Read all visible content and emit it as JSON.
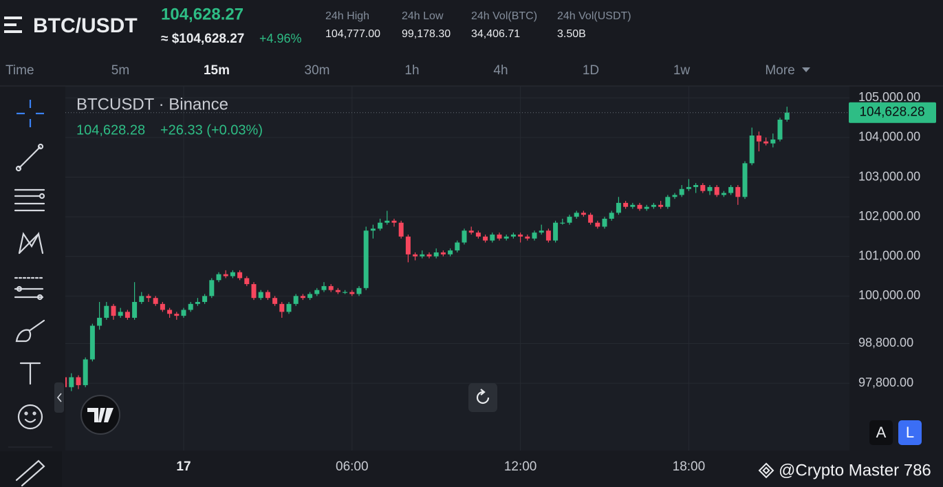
{
  "header": {
    "pair": "BTC/USDT",
    "price": "104,628.27",
    "fiat_price": "≈ $104,628.27",
    "change": "+4.96%",
    "stats": [
      {
        "label": "24h High",
        "value": "104,777.00"
      },
      {
        "label": "24h Low",
        "value": "99,178.30"
      },
      {
        "label": "24h Vol(BTC)",
        "value": "34,406.71"
      },
      {
        "label": "24h Vol(USDT)",
        "value": "3.50B"
      }
    ]
  },
  "timeframes": [
    {
      "label": "Time",
      "active": false
    },
    {
      "label": "5m",
      "active": false
    },
    {
      "label": "15m",
      "active": true
    },
    {
      "label": "30m",
      "active": false
    },
    {
      "label": "1h",
      "active": false
    },
    {
      "label": "4h",
      "active": false
    },
    {
      "label": "1D",
      "active": false
    },
    {
      "label": "1w",
      "active": false
    },
    {
      "label": "More",
      "active": false
    }
  ],
  "chart_data": {
    "type": "candlestick",
    "legend": {
      "title": "BTCUSDT · Binance",
      "price": "104,628.28",
      "change": "+26.33 (+0.03%)"
    },
    "price_tag": "104,628.28",
    "up_color": "#2ebd85",
    "down_color": "#f6465d",
    "grid": true,
    "categories": [
      null,
      null,
      null,
      null,
      null,
      null,
      null,
      null,
      null,
      null,
      null,
      null,
      null,
      null,
      null,
      null,
      null,
      "17",
      null,
      null,
      null,
      null,
      null,
      null,
      null,
      null,
      null,
      null,
      null,
      null,
      null,
      null,
      null,
      null,
      null,
      null,
      null,
      null,
      null,
      null,
      null,
      "06:00",
      null,
      null,
      null,
      null,
      null,
      null,
      null,
      null,
      null,
      null,
      null,
      null,
      null,
      null,
      null,
      null,
      null,
      null,
      null,
      null,
      null,
      null,
      null,
      "12:00",
      null,
      null,
      null,
      null,
      null,
      null,
      null,
      null,
      null,
      null,
      null,
      null,
      null,
      null,
      null,
      null,
      null,
      null,
      null,
      null,
      null,
      null,
      null,
      "18:00",
      null,
      null,
      null,
      null,
      null,
      null,
      null,
      null,
      null,
      null,
      null,
      null,
      null,
      null
    ],
    "open": [
      97950,
      97700,
      97950,
      97750,
      98400,
      99250,
      99450,
      99750,
      99500,
      99600,
      99450,
      99850,
      100000,
      99950,
      99800,
      99650,
      99550,
      99500,
      99650,
      99800,
      99850,
      100000,
      100400,
      100550,
      100500,
      100600,
      100450,
      100300,
      99950,
      100100,
      99950,
      99800,
      99600,
      99800,
      100000,
      99950,
      100050,
      100150,
      100250,
      100150,
      100100,
      100100,
      100050,
      100200,
      101650,
      101700,
      101850,
      101900,
      101850,
      101500,
      101050,
      101000,
      101050,
      101000,
      101100,
      101050,
      101150,
      101350,
      101650,
      101600,
      101500,
      101400,
      101550,
      101450,
      101500,
      101550,
      101500,
      101450,
      101600,
      101650,
      101400,
      101850,
      101850,
      102000,
      102100,
      102050,
      101850,
      101750,
      101950,
      102100,
      102350,
      102250,
      102300,
      102200,
      102250,
      102300,
      102250,
      102500,
      102550,
      102700,
      102750,
      102800,
      102650,
      102750,
      102550,
      102600,
      102750,
      102500,
      103350,
      104050,
      103900,
      103850,
      103950,
      104450
    ],
    "high": [
      98050,
      98050,
      98000,
      98450,
      99300,
      99850,
      99850,
      99800,
      99700,
      99650,
      100350,
      100100,
      100050,
      100000,
      99850,
      99700,
      99600,
      99700,
      99850,
      99950,
      100050,
      100450,
      100600,
      100650,
      100650,
      100650,
      100500,
      100350,
      100150,
      100150,
      100000,
      99850,
      99850,
      100050,
      100050,
      100100,
      100200,
      100350,
      100300,
      100200,
      100150,
      100150,
      100250,
      101750,
      101800,
      101950,
      102150,
      101950,
      101900,
      101550,
      101100,
      101150,
      101100,
      101200,
      101150,
      101200,
      101400,
      101700,
      101750,
      101650,
      101550,
      101600,
      101600,
      101550,
      101600,
      101600,
      101550,
      101650,
      101800,
      101700,
      101900,
      101950,
      102050,
      102150,
      102150,
      102100,
      101900,
      102000,
      102150,
      102500,
      102400,
      102350,
      102350,
      102300,
      102350,
      102400,
      102550,
      102600,
      102800,
      102950,
      102850,
      102850,
      102800,
      102800,
      102650,
      102800,
      102800,
      103400,
      104250,
      104150,
      104000,
      104100,
      104500,
      104777
    ],
    "low": [
      97550,
      97600,
      97650,
      97700,
      98350,
      99150,
      99400,
      99400,
      99450,
      99400,
      99400,
      99800,
      99850,
      99750,
      99600,
      99450,
      99400,
      99450,
      99600,
      99750,
      99800,
      99950,
      100350,
      100450,
      100450,
      100400,
      100250,
      99900,
      99900,
      99900,
      99750,
      99450,
      99550,
      99750,
      99900,
      99900,
      100000,
      100100,
      100100,
      100050,
      100050,
      100000,
      100000,
      100150,
      101450,
      101650,
      101800,
      101750,
      101450,
      100850,
      100900,
      100950,
      100950,
      100950,
      101000,
      101000,
      101100,
      101300,
      101550,
      101450,
      101350,
      101350,
      101400,
      101400,
      101450,
      101350,
      101400,
      101400,
      101550,
      101350,
      101350,
      101800,
      101800,
      101950,
      102000,
      101800,
      101700,
      101700,
      101900,
      102050,
      102200,
      102200,
      102150,
      102150,
      102200,
      102200,
      102200,
      102450,
      102500,
      102650,
      102600,
      102600,
      102550,
      102500,
      102500,
      102550,
      102300,
      102450,
      103300,
      103650,
      103800,
      103750,
      103900,
      104400
    ],
    "close": [
      97700,
      97950,
      97750,
      98400,
      99250,
      99450,
      99750,
      99500,
      99600,
      99450,
      99850,
      100000,
      99950,
      99800,
      99650,
      99550,
      99500,
      99650,
      99800,
      99850,
      100000,
      100400,
      100550,
      100500,
      100600,
      100450,
      100300,
      99950,
      100100,
      99950,
      99800,
      99600,
      99800,
      100000,
      99950,
      100050,
      100150,
      100250,
      100150,
      100100,
      100100,
      100050,
      100200,
      101650,
      101700,
      101850,
      101900,
      101850,
      101500,
      101050,
      101000,
      101050,
      101000,
      101100,
      101050,
      101150,
      101350,
      101650,
      101600,
      101500,
      101400,
      101550,
      101450,
      101500,
      101550,
      101500,
      101450,
      101600,
      101650,
      101400,
      101850,
      101850,
      102000,
      102100,
      102050,
      101850,
      101750,
      101950,
      102100,
      102350,
      102250,
      102300,
      102200,
      102250,
      102300,
      102250,
      102500,
      102550,
      102700,
      102750,
      102800,
      102650,
      102750,
      102550,
      102600,
      102750,
      102500,
      103350,
      104050,
      103900,
      103850,
      103950,
      104450,
      104628.28
    ],
    "ylim": [
      96100,
      105300
    ],
    "yticks": [
      {
        "value": 105000,
        "label": "105,000.00"
      },
      {
        "value": 104000,
        "label": "104,000.00"
      },
      {
        "value": 103000,
        "label": "103,000.00"
      },
      {
        "value": 102000,
        "label": "102,000.00"
      },
      {
        "value": 101000,
        "label": "101,000.00"
      },
      {
        "value": 100000,
        "label": "100,000.00"
      },
      {
        "value": 98800,
        "label": "98,800.00"
      },
      {
        "value": 97800,
        "label": "97,800.00"
      }
    ]
  },
  "buttons": {
    "auto": "A",
    "log": "L"
  },
  "watermark": "@Crypto Master 786"
}
